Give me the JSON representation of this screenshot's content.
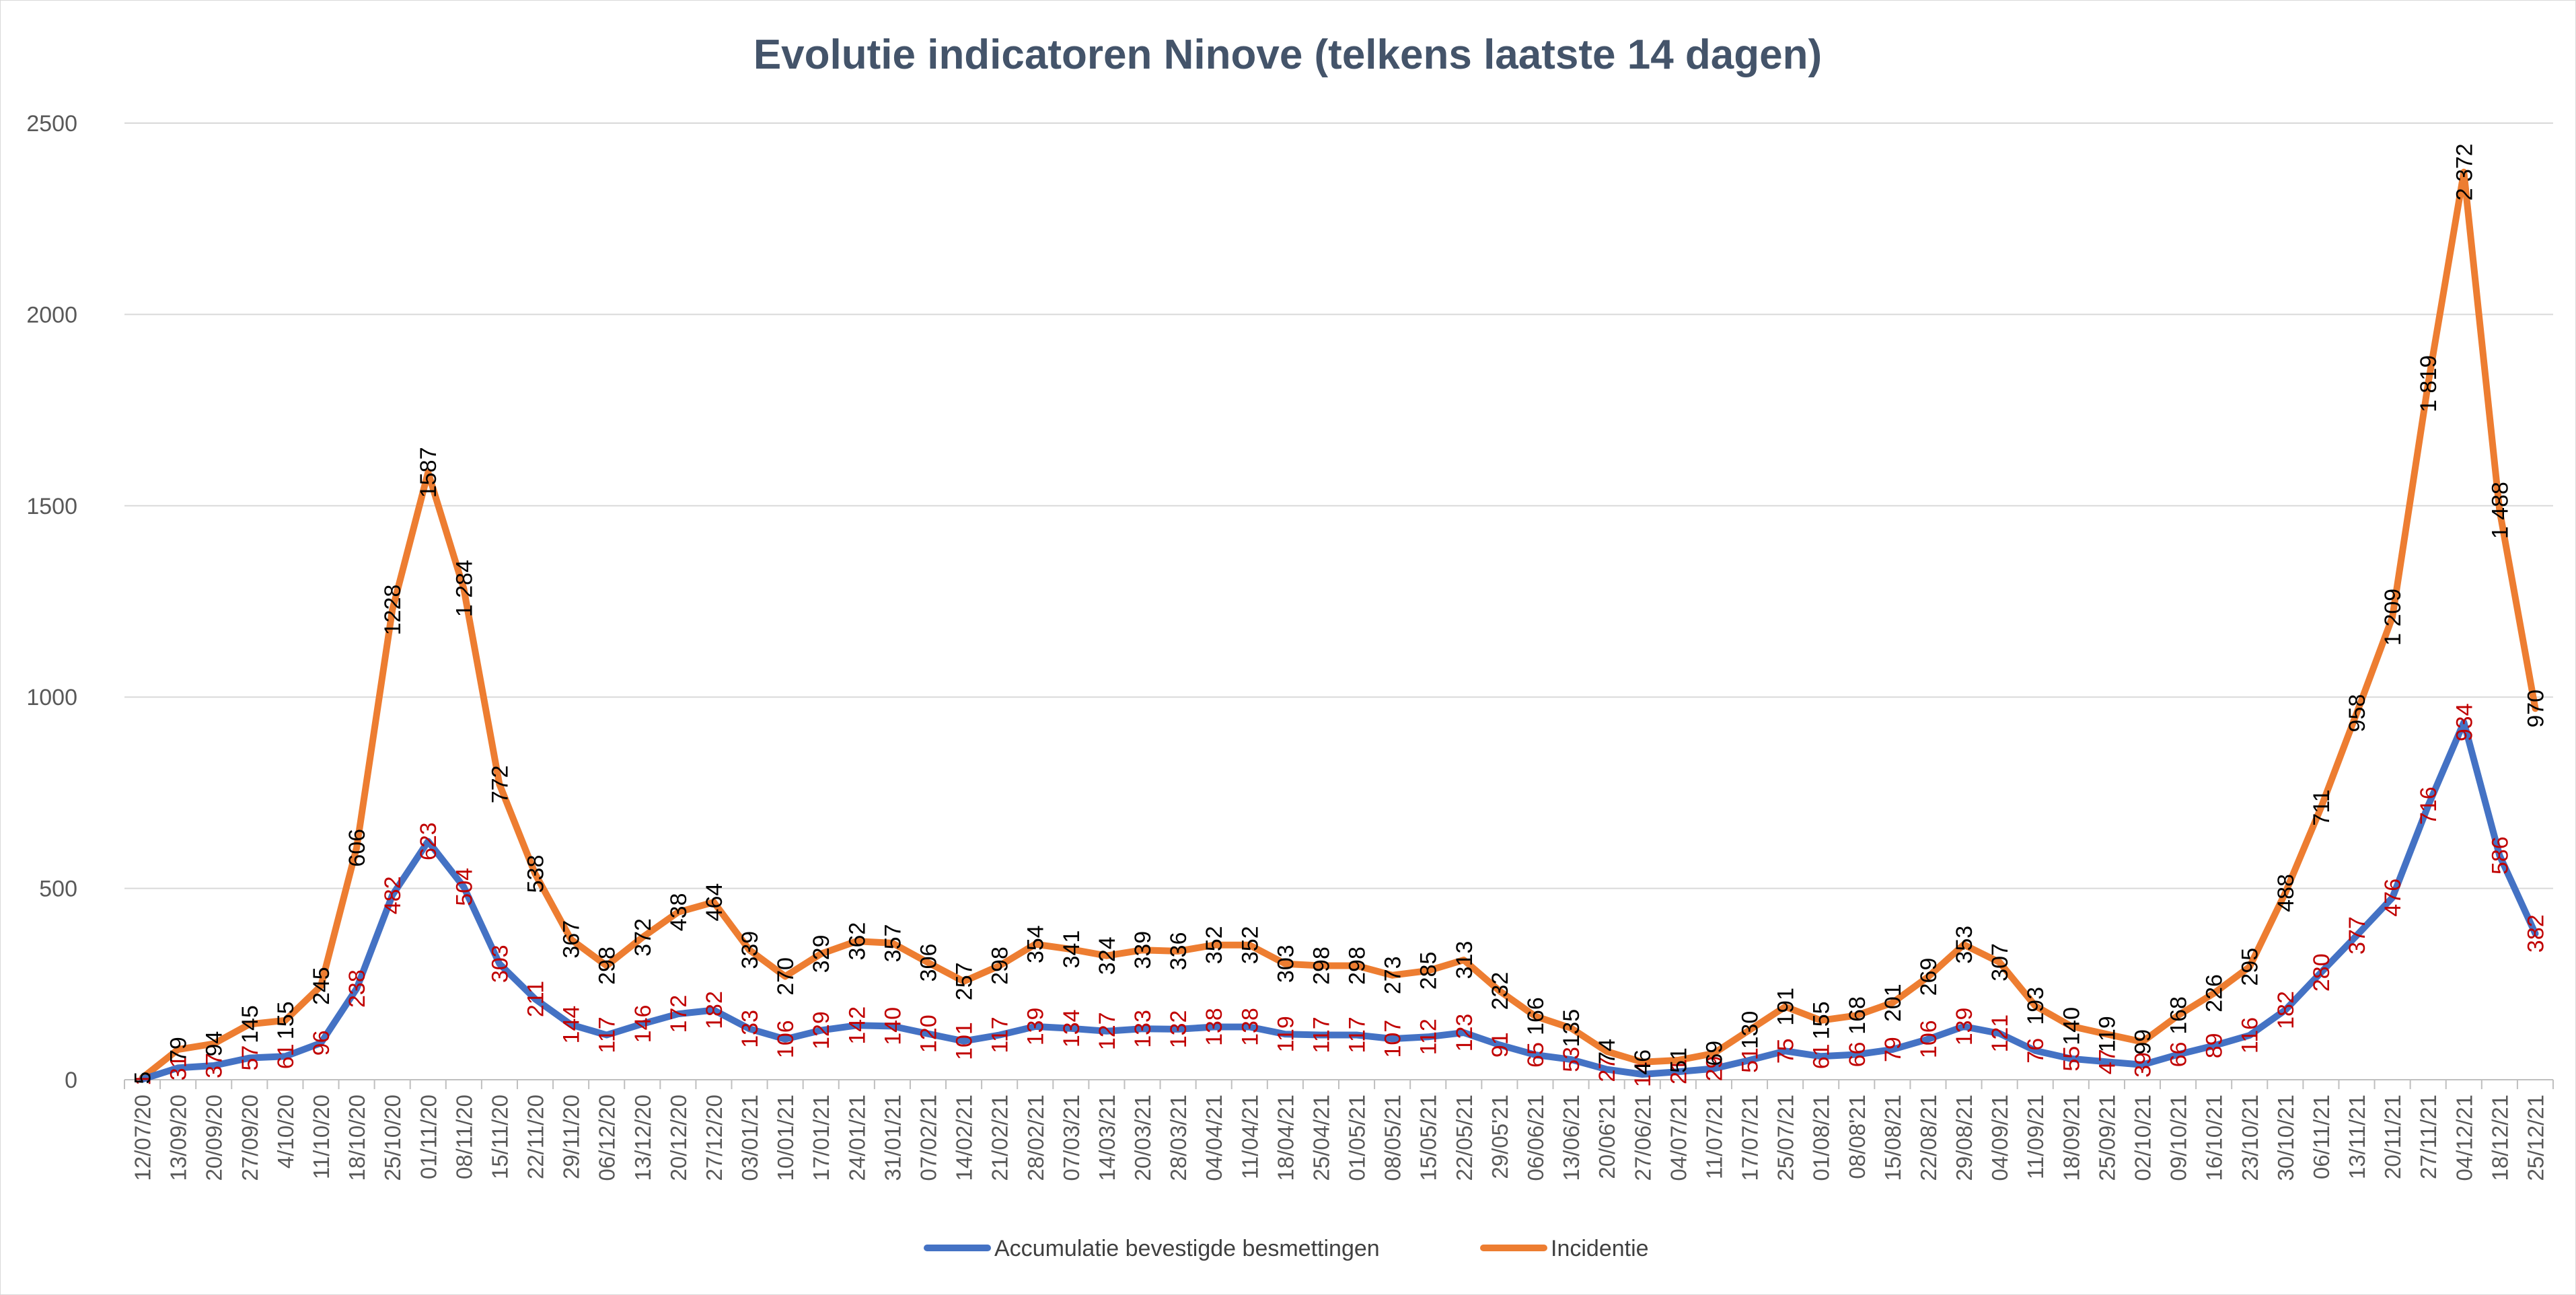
{
  "chart_data": {
    "type": "line",
    "title": "Evolutie indicatoren Ninove (telkens laatste 14 dagen)",
    "xlabel": "",
    "ylabel": "",
    "ylim": [
      0,
      2500
    ],
    "yticks": [
      "0",
      "500",
      "1000",
      "1500",
      "2000",
      "2500"
    ],
    "grid": true,
    "legend_position": "bottom",
    "categories": [
      "12/07/20",
      "13/09/20",
      "20/09/20",
      "27/09/20",
      "4/10/20",
      "11/10/20",
      "18/10/20",
      "25/10/20",
      "01/11/20",
      "08/11/20",
      "15/11/20",
      "22/11/20",
      "29/11/20",
      "06/12/20",
      "13/12/20",
      "20/12/20",
      "27/12/20",
      "03/01/21",
      "10/01/21",
      "17/01/21",
      "24/01/21",
      "31/01/21",
      "07/02/21",
      "14/02/21",
      "21/02/21",
      "28/02/21",
      "07/03/21",
      "14/03/21",
      "20/03/21",
      "28/03/21",
      "04/04/21",
      "11/04/21",
      "18/04/21",
      "25/04/21",
      "01/05/21",
      "08/05/21",
      "15/05/21",
      "22/05/21",
      "29/05'21",
      "06/06/21",
      "13/06/21",
      "20/06'21",
      "27/06/21",
      "04/07/21",
      "11/07/21",
      "17/07/21",
      "25/07/21",
      "01/08/21",
      "08/08'21",
      "15/08/21",
      "22/08/21",
      "29/08/21",
      "04/09/21",
      "11/09/21",
      "18/09/21",
      "25/09/21",
      "02/10/21",
      "09/10/21",
      "16/10/21",
      "23/10/21",
      "30/10/21",
      "06/11/21",
      "13/11/21",
      "20/11/21",
      "27/11/21",
      "04/12/21",
      "18/12/21",
      "25/12/21"
    ],
    "series": [
      {
        "name": "Accumulatie bevestigde besmettingen",
        "color": "#4472c4",
        "values": [
          1,
          31,
          37,
          57,
          61,
          96,
          238,
          482,
          623,
          504,
          303,
          211,
          144,
          117,
          146,
          172,
          182,
          133,
          106,
          129,
          142,
          140,
          120,
          101,
          117,
          139,
          134,
          127,
          133,
          132,
          138,
          138,
          119,
          117,
          117,
          107,
          112,
          123,
          91,
          65,
          53,
          27,
          14,
          21,
          29,
          51,
          75,
          61,
          66,
          79,
          106,
          139,
          121,
          76,
          55,
          47,
          39,
          66,
          89,
          116,
          182,
          280,
          377,
          476,
          716,
          934,
          586,
          382
        ],
        "labels": [
          "1",
          "31",
          "37",
          "57",
          "61",
          "96",
          "238",
          "482",
          "623",
          "504",
          "303",
          "211",
          "144",
          "117",
          "146",
          "172",
          "182",
          "133",
          "106",
          "129",
          "142",
          "140",
          "120",
          "101",
          "117",
          "139",
          "134",
          "127",
          "133",
          "132",
          "138",
          "138",
          "119",
          "117",
          "117",
          "107",
          "112",
          "123",
          "91",
          "65",
          "53",
          "27",
          "14",
          "21",
          "29",
          "51",
          "75",
          "61",
          "66",
          "79",
          "106",
          "139",
          "121",
          "76",
          "55",
          "47",
          "39",
          "66",
          "89",
          "116",
          "182",
          "280",
          "377",
          "476",
          "716",
          "934",
          "586",
          "382"
        ]
      },
      {
        "name": "Incidentie",
        "color": "#ed7d31",
        "values": [
          5,
          79,
          94,
          145,
          155,
          245,
          606,
          1228,
          1587,
          1284,
          772,
          538,
          367,
          298,
          372,
          438,
          464,
          339,
          270,
          329,
          362,
          357,
          306,
          257,
          298,
          354,
          341,
          324,
          339,
          336,
          352,
          352,
          303,
          298,
          298,
          273,
          285,
          313,
          232,
          166,
          135,
          74,
          46,
          51,
          69,
          130,
          191,
          155,
          168,
          201,
          269,
          353,
          307,
          193,
          140,
          119,
          99,
          168,
          226,
          295,
          488,
          711,
          958,
          1209,
          1819,
          2372,
          1488,
          970
        ],
        "labels": [
          "5",
          "79",
          "94",
          "145",
          "155",
          "245",
          "606",
          "1228",
          "1587",
          "1 284",
          "772",
          "538",
          "367",
          "298",
          "372",
          "438",
          "464",
          "339",
          "270",
          "329",
          "362",
          "357",
          "306",
          "257",
          "298",
          "354",
          "341",
          "324",
          "339",
          "336",
          "352",
          "352",
          "303",
          "298",
          "298",
          "273",
          "285",
          "313",
          "232",
          "166",
          "135",
          "74",
          "46",
          "51",
          "69",
          "130",
          "191",
          "155",
          "168",
          "201",
          "269",
          "353",
          "307",
          "193",
          "140",
          "119",
          "99",
          "168",
          "226",
          "295",
          "488",
          "711",
          "958",
          "1 209",
          "1 819",
          "2 372",
          "1 488",
          "970"
        ]
      }
    ]
  }
}
